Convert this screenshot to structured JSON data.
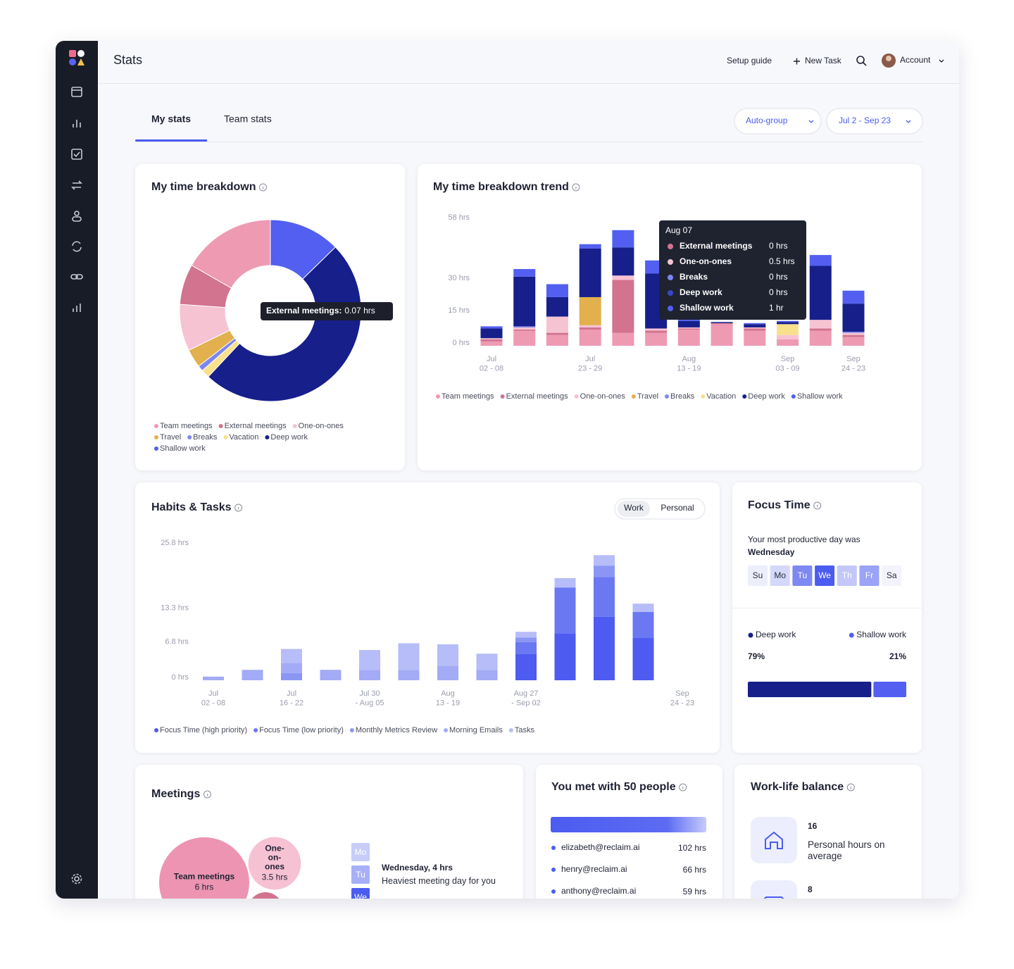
{
  "header": {
    "title": "Stats",
    "links": [
      "Setup guide",
      "New Task"
    ],
    "account": "Account"
  },
  "tabs": {
    "items": [
      "My stats",
      "Team stats"
    ],
    "active": 0
  },
  "filters": [
    "Auto-group",
    "Jul 2 - Sep 23"
  ],
  "time_breakdown": {
    "type": "pie",
    "title": "My time breakdown",
    "series": [
      {
        "name": "Team meetings",
        "color": "#ee9ab3",
        "value": 16.7
      },
      {
        "name": "External meetings",
        "color": "#d2738f",
        "value": 7.2
      },
      {
        "name": "One-on-ones",
        "color": "#f6c3d3",
        "value": 8.3
      },
      {
        "name": "Travel",
        "color": "#e2b04c",
        "value": 3.3
      },
      {
        "name": "Breaks",
        "color": "#7d86ee",
        "value": 1
      },
      {
        "name": "Vacation",
        "color": "#f9e08a",
        "value": 1.5
      },
      {
        "name": "Deep work",
        "color": "#161f8a",
        "value": 49.3
      },
      {
        "name": "Shallow work",
        "color": "#525ff0",
        "value": 12.7
      }
    ],
    "tooltip": {
      "label": "External meetings:",
      "value": "0.07 hrs"
    }
  },
  "time_trend": {
    "type": "bar",
    "stacked": true,
    "title": "My time breakdown trend",
    "categories": [
      [
        "Jul",
        "02 - 08"
      ],
      null,
      null,
      [
        "Jul",
        "23 - 29"
      ],
      null,
      null,
      [
        "Aug",
        "13 - 19"
      ],
      null,
      null,
      [
        "Sep",
        "03 - 09"
      ],
      null,
      [
        "Sep",
        "24 - 23"
      ]
    ],
    "series": [
      {
        "name": "Team meetings",
        "color": "#ee9ab3",
        "values": [
          2,
          7,
          5,
          7.5,
          6,
          6,
          7.5,
          10,
          7,
          3,
          7,
          4
        ]
      },
      {
        "name": "External meetings",
        "color": "#d2738f",
        "values": [
          1,
          0.5,
          1,
          1,
          24.5,
          1,
          0.5,
          0.5,
          1,
          0,
          1,
          1
        ]
      },
      {
        "name": "One-on-ones",
        "color": "#f6c3d3",
        "values": [
          0.5,
          1,
          7.5,
          1,
          2,
          1,
          0.5,
          0,
          0.5,
          2,
          4,
          1
        ]
      },
      {
        "name": "Travel",
        "color": "#e2b04c",
        "values": [
          0,
          0,
          0,
          13,
          0,
          0,
          0,
          0,
          0,
          0,
          0,
          0
        ]
      },
      {
        "name": "Breaks",
        "color": "#7d86ee",
        "values": [
          0,
          0.5,
          0,
          0,
          0,
          0,
          0,
          0,
          0,
          0,
          0,
          0.5
        ]
      },
      {
        "name": "Vacation",
        "color": "#f9e08a",
        "values": [
          0,
          0,
          0,
          0,
          0,
          0,
          0,
          0,
          0,
          5,
          0,
          0
        ]
      },
      {
        "name": "Deep work",
        "color": "#161f8a",
        "values": [
          4.5,
          23,
          9,
          22.5,
          13,
          25.5,
          3,
          0.5,
          1.5,
          1,
          25,
          13
        ]
      },
      {
        "name": "Shallow work",
        "color": "#525ff0",
        "values": [
          1,
          3.5,
          6,
          2,
          8,
          6,
          1,
          0,
          0.5,
          0.5,
          5,
          6
        ]
      }
    ],
    "ylim": [
      0,
      58
    ],
    "yticks": [
      {
        "value": 0,
        "label": "0 hrs"
      },
      {
        "value": 15,
        "label": "15 hrs"
      },
      {
        "value": 30,
        "label": "30 hrs"
      },
      {
        "value": 58,
        "label": "58 hrs"
      }
    ],
    "grid": false,
    "tooltip": {
      "title": "Aug 07",
      "rows": [
        {
          "name": "External meetings",
          "color": "#d2738f",
          "value": "0 hrs"
        },
        {
          "name": "One-on-ones",
          "color": "#f6c3d3",
          "value": "0.5 hrs"
        },
        {
          "name": "Breaks",
          "color": "#7d86ee",
          "value": "0 hrs"
        },
        {
          "name": "Deep work",
          "color": "#3a46c8",
          "value": "0 hrs"
        },
        {
          "name": "Shallow work",
          "color": "#525ff0",
          "value": "1 hr"
        }
      ]
    }
  },
  "habits_tasks": {
    "type": "bar",
    "stacked": true,
    "title": "Habits & Tasks",
    "toggle": [
      "Work",
      "Personal"
    ],
    "categories": [
      [
        "Jul",
        "02 - 08"
      ],
      null,
      [
        "Jul",
        "16 - 22"
      ],
      null,
      [
        "Jul 30",
        "- Aug 05"
      ],
      null,
      [
        "Aug",
        "13 - 19"
      ],
      null,
      [
        "Aug 27",
        "- Sep 02"
      ],
      null,
      null,
      null,
      [
        "Sep",
        "24 - 23"
      ]
    ],
    "series": [
      {
        "name": "Focus Time (high priority)",
        "color": "#4d5bf0",
        "values": [
          0,
          0,
          0,
          0,
          0,
          0,
          0,
          0,
          5,
          9,
          12.2,
          8.1,
          0
        ]
      },
      {
        "name": "Focus Time (low priority)",
        "color": "#6a78f2",
        "values": [
          0,
          0,
          0,
          0,
          0,
          0,
          0,
          0,
          2.3,
          8.8,
          7.6,
          5,
          0
        ]
      },
      {
        "name": "Monthly Metrics Review",
        "color": "#8b96f4",
        "values": [
          0,
          0,
          1.4,
          0,
          0,
          0,
          0,
          0,
          0.9,
          0,
          2.2,
          0,
          0
        ]
      },
      {
        "name": "Morning Emails",
        "color": "#a3abf6",
        "values": [
          0.7,
          2,
          1.9,
          2,
          2,
          2,
          2.8,
          2,
          0,
          0,
          0,
          0,
          0
        ]
      },
      {
        "name": "Tasks",
        "color": "#b6bdf8",
        "values": [
          0,
          0,
          2.7,
          0,
          3.8,
          5.1,
          4.1,
          3.1,
          1.1,
          1.8,
          2,
          1.6,
          0
        ]
      }
    ],
    "ylim": [
      0,
      25.8
    ],
    "yticks": [
      {
        "value": 0,
        "label": "0 hrs"
      },
      {
        "value": 6.8,
        "label": "6.8 hrs"
      },
      {
        "value": 13.3,
        "label": "13.3 hrs"
      },
      {
        "value": 25.8,
        "label": "25.8 hrs"
      }
    ],
    "grid": false
  },
  "focus_time": {
    "title": "Focus Time",
    "intro": "Your most productive day was",
    "best_day": "Wednesday",
    "days": [
      {
        "label": "Su",
        "color": "#eceefc"
      },
      {
        "label": "Mo",
        "color": "#d4d8fa"
      },
      {
        "label": "Tu",
        "color": "#7d88f2"
      },
      {
        "label": "We",
        "color": "#4b5cf0"
      },
      {
        "label": "Th",
        "color": "#c3c8f8"
      },
      {
        "label": "Fr",
        "color": "#9aa3f5"
      },
      {
        "label": "Sa",
        "color": "#f3f4fb"
      }
    ],
    "split": {
      "type": "bar",
      "series": [
        {
          "name": "Deep work",
          "color": "#161f8a",
          "value": 79,
          "value_label": "79%"
        },
        {
          "name": "Shallow work",
          "color": "#525ff0",
          "value": 21,
          "value_label": "21%"
        }
      ]
    }
  },
  "meetings": {
    "title": "Meetings",
    "bubbles": {
      "type": "bubble",
      "series": [
        {
          "label_lines": [
            "Team meetings"
          ],
          "color": "#ec94b1",
          "value": 6,
          "value_label": "6 hrs"
        },
        {
          "label_lines": [
            "One-",
            "on-",
            "ones"
          ],
          "color": "#f6c1d3",
          "value": 3.5,
          "value_label": "3.5 hrs"
        }
      ]
    },
    "days": [
      {
        "label": "Mo",
        "color": "#c7ccf9"
      },
      {
        "label": "Tu",
        "color": "#a7aff7"
      },
      {
        "label": "We",
        "color": "#4b5cf0"
      }
    ],
    "heaviest": "Wednesday, 4 hrs",
    "heaviest_note": "Heaviest meeting day for you"
  },
  "people": {
    "title": "You met with 50 people",
    "rows": [
      {
        "email": "elizabeth@reclaim.ai",
        "hours": "102 hrs"
      },
      {
        "email": "henry@reclaim.ai",
        "hours": "66 hrs"
      },
      {
        "email": "anthony@reclaim.ai",
        "hours": "59 hrs"
      }
    ]
  },
  "work_life": {
    "title": "Work-life balance",
    "stats": [
      {
        "value": 16,
        "label": "Personal hours on average"
      },
      {
        "value": 8
      }
    ]
  }
}
